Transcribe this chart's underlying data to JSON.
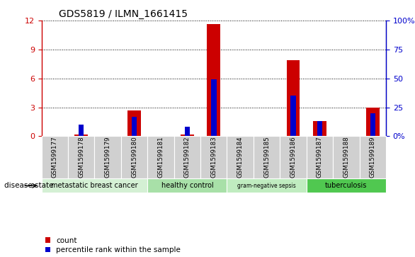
{
  "title": "GDS5819 / ILMN_1661415",
  "samples": [
    "GSM1599177",
    "GSM1599178",
    "GSM1599179",
    "GSM1599180",
    "GSM1599181",
    "GSM1599182",
    "GSM1599183",
    "GSM1599184",
    "GSM1599185",
    "GSM1599186",
    "GSM1599187",
    "GSM1599188",
    "GSM1599189"
  ],
  "red_values": [
    0.0,
    0.2,
    0.0,
    2.7,
    0.0,
    0.15,
    11.6,
    0.0,
    0.0,
    7.9,
    1.6,
    0.0,
    3.0
  ],
  "pct_values": [
    0.0,
    10.0,
    0.0,
    17.0,
    0.0,
    8.0,
    49.0,
    0.0,
    0.0,
    35.0,
    13.0,
    0.0,
    20.0
  ],
  "ylim_left": [
    0,
    12
  ],
  "ylim_right": [
    0,
    100
  ],
  "yticks_left": [
    0,
    3,
    6,
    9,
    12
  ],
  "yticks_right": [
    0,
    25,
    50,
    75,
    100
  ],
  "ytick_labels_left": [
    "0",
    "3",
    "6",
    "9",
    "12"
  ],
  "ytick_labels_right": [
    "0%",
    "25",
    "50",
    "75",
    "100%"
  ],
  "groups": [
    {
      "label": "metastatic breast cancer",
      "start": 0,
      "end": 4,
      "color": "#d4f0d4"
    },
    {
      "label": "healthy control",
      "start": 4,
      "end": 7,
      "color": "#a8e0a8"
    },
    {
      "label": "gram-negative sepsis",
      "start": 7,
      "end": 10,
      "color": "#c0ecc0"
    },
    {
      "label": "tuberculosis",
      "start": 10,
      "end": 13,
      "color": "#50c850"
    }
  ],
  "red_color": "#cc0000",
  "blue_color": "#0000cc",
  "tick_bg": "#d0d0d0",
  "legend_items": [
    {
      "label": "count",
      "color": "#cc0000"
    },
    {
      "label": "percentile rank within the sample",
      "color": "#0000cc"
    }
  ],
  "disease_state_label": "disease state"
}
